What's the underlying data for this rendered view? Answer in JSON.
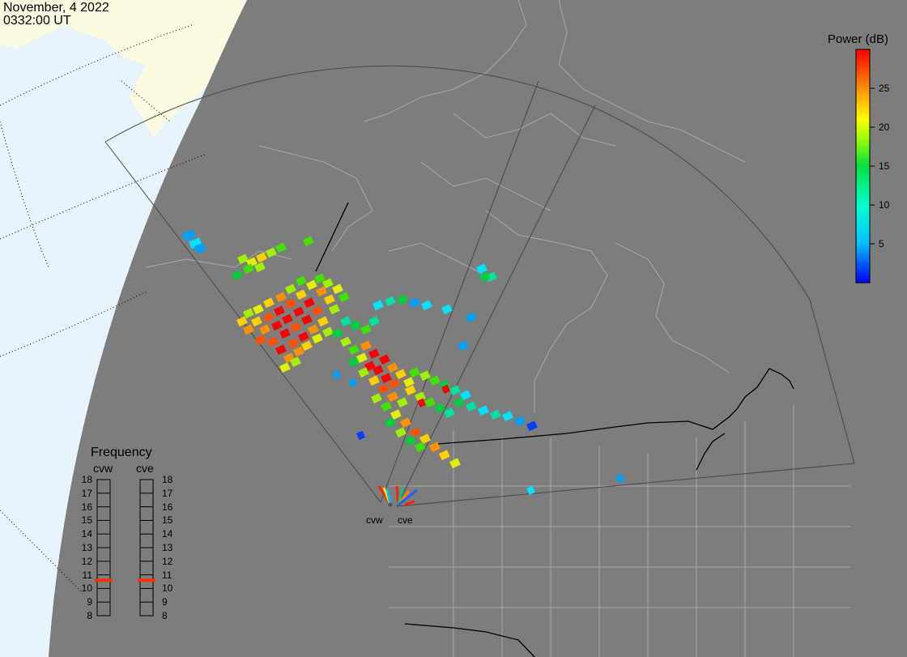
{
  "header": {
    "date": "November, 4 2022",
    "time": "0332:00 UT"
  },
  "colorbar": {
    "title": "Power (dB)",
    "min": 0,
    "max": 30,
    "ticks": [
      "5",
      "10",
      "15",
      "20",
      "25"
    ],
    "tick_values": [
      5,
      10,
      15,
      20,
      25
    ]
  },
  "frequency": {
    "title": "Frequency",
    "radars": [
      "cvw",
      "cve"
    ],
    "scale": [
      "18",
      "17",
      "16",
      "15",
      "14",
      "13",
      "12",
      "11",
      "10",
      "9",
      "8"
    ],
    "current_mhz": [
      10.6,
      10.6
    ],
    "indicator_color": "#ff3000"
  },
  "radar_sites": {
    "labels": [
      "cvw",
      "cve"
    ]
  },
  "colors": {
    "ocean": "#e8f4fc",
    "night_side": "#7d7d7d",
    "land_daylight": "#fcfae0",
    "boundary": "#a8a8a8",
    "coast": "#000000"
  }
}
